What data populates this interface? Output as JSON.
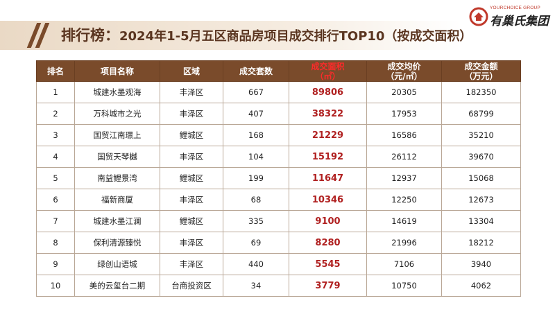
{
  "title": {
    "main": "排行榜：",
    "sub": "2024年1-5月五区商品房项目成交排行TOP10（按成交面积）"
  },
  "logo": {
    "tagline": "YOURCHOICE GROUP",
    "name": "有巢氏集团",
    "icon": "house-mark-icon",
    "color": "#c0392b"
  },
  "colors": {
    "header_bg": "#7a4b2b",
    "highlight": "#ff2a2a",
    "area_value": "#b02020"
  },
  "table": {
    "headers": [
      {
        "line1": "排名",
        "line2": ""
      },
      {
        "line1": "项目名称",
        "line2": ""
      },
      {
        "line1": "区域",
        "line2": ""
      },
      {
        "line1": "成交套数",
        "line2": ""
      },
      {
        "line1": "成交面积",
        "line2": "（㎡）"
      },
      {
        "line1": "成交均价",
        "line2": "（元/㎡）"
      },
      {
        "line1": "成交金额",
        "line2": "（万元）"
      }
    ],
    "rows": [
      [
        "1",
        "城建水墨观海",
        "丰泽区",
        "667",
        "89806",
        "20305",
        "182350"
      ],
      [
        "2",
        "万科城市之光",
        "丰泽区",
        "407",
        "38322",
        "17953",
        "68799"
      ],
      [
        "3",
        "国贸江南璟上",
        "鲤城区",
        "168",
        "21229",
        "16586",
        "35210"
      ],
      [
        "4",
        "国贸天琴樾",
        "丰泽区",
        "104",
        "15192",
        "26112",
        "39670"
      ],
      [
        "5",
        "南益鲤景湾",
        "鲤城区",
        "199",
        "11647",
        "12937",
        "15068"
      ],
      [
        "6",
        "福新商厦",
        "丰泽区",
        "68",
        "10346",
        "12250",
        "12673"
      ],
      [
        "7",
        "城建水墨江澜",
        "鲤城区",
        "335",
        "9100",
        "14619",
        "13304"
      ],
      [
        "8",
        "保利清源臻悦",
        "丰泽区",
        "69",
        "8280",
        "21996",
        "18212"
      ],
      [
        "9",
        "绿创山语城",
        "丰泽区",
        "440",
        "5545",
        "7106",
        "3940"
      ],
      [
        "10",
        "美的云玺台二期",
        "台商投资区",
        "34",
        "3779",
        "10750",
        "4062"
      ]
    ]
  }
}
